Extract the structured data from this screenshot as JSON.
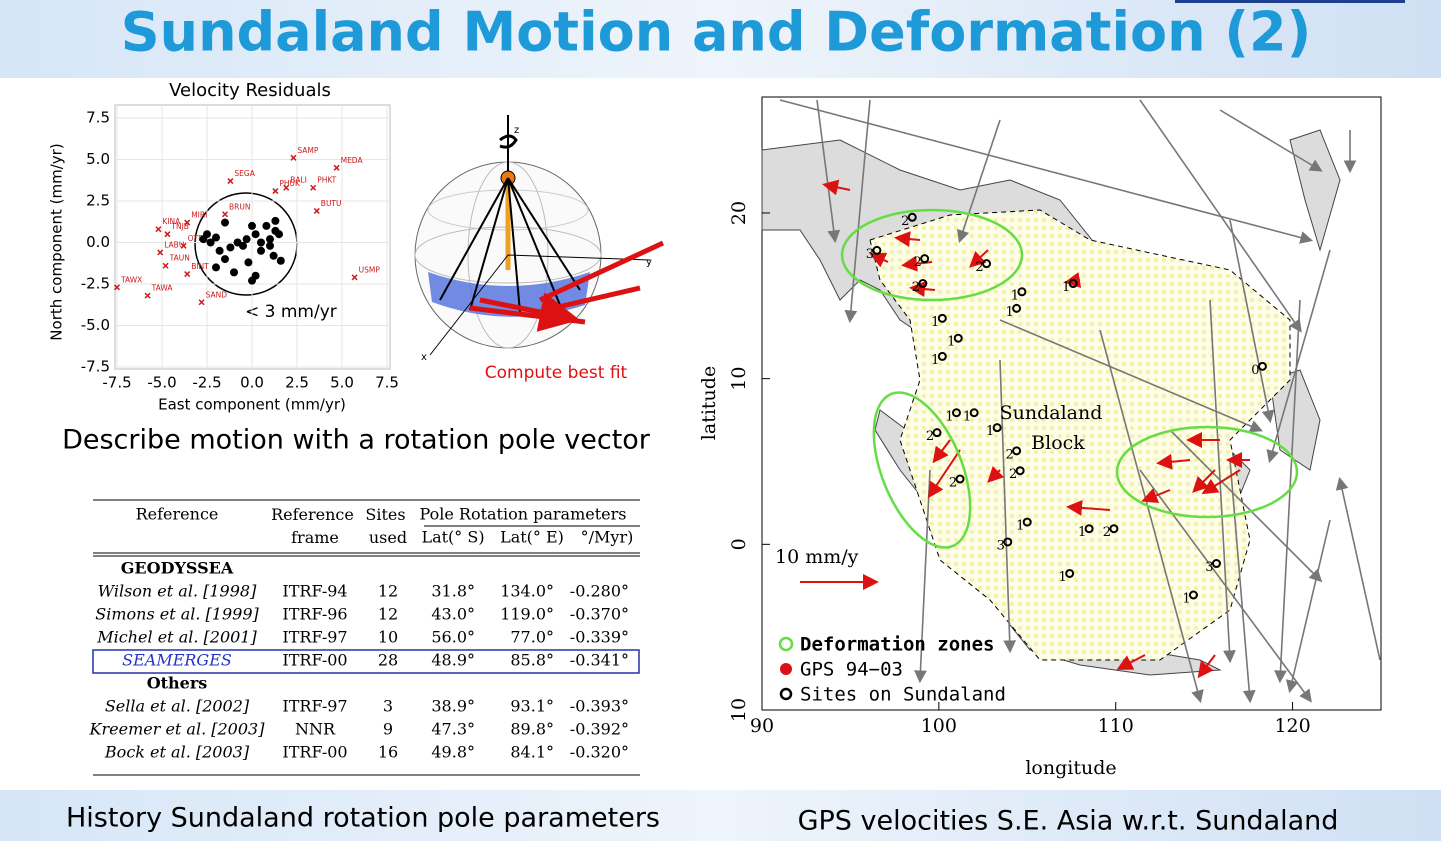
{
  "title": "Sundaland Motion and Deformation (2)",
  "scatter": {
    "type": "scatter",
    "title": "Velocity Residuals",
    "x_label": "East component (mm/yr)",
    "y_label": "North component (mm/yr)",
    "xlim": [
      -7.5,
      7.5
    ],
    "ylim": [
      -7.5,
      7.5
    ],
    "xticks": [
      -7.5,
      {
        "value": -5,
        "label": "-5.0"
      },
      -2.5,
      {
        "value": 0,
        "label": "0.0"
      },
      2.5,
      {
        "value": 5,
        "label": "5.0"
      },
      7.5
    ],
    "yticks": [
      7.5,
      {
        "value": 5,
        "label": "5.0"
      },
      2.5,
      {
        "value": 0,
        "label": "0.0"
      },
      -2.5,
      {
        "value": -5,
        "label": "-5.0"
      },
      {
        "value": -7.5,
        "label": "-7.5"
      }
    ],
    "series": [
      {
        "color": "#cc1a1a",
        "labels": [
          "SAMP",
          "MEDA",
          "SEGA",
          "BALI",
          "PHKT",
          "PHUK",
          "BRUN",
          "BUTU",
          "MIRI",
          "KINA",
          "TNJB",
          "LABU",
          "OTRI",
          "TAUN",
          "BINT",
          "USMP",
          "TAWX",
          "TAWA",
          "SAND"
        ],
        "x": [
          2.3,
          4.7,
          -1.2,
          1.9,
          3.4,
          1.3,
          -1.5,
          3.6,
          -3.6,
          -5.2,
          -4.7,
          -5.1,
          -3.8,
          -4.8,
          -3.6,
          5.7,
          -7.5,
          -5.8,
          -2.8
        ],
        "values": [
          5.1,
          4.5,
          3.7,
          3.3,
          3.3,
          3.1,
          1.7,
          1.9,
          1.2,
          0.8,
          0.5,
          -0.6,
          -0.2,
          -1.4,
          -1.9,
          -2.1,
          -2.7,
          -3.2,
          -3.6
        ]
      },
      {
        "color": "#000000",
        "x": [
          -2.5,
          -2.3,
          -2.0,
          -1.8,
          -1.5,
          -1.2,
          -0.8,
          -0.5,
          0.0,
          0.2,
          0.5,
          0.8,
          1.0,
          1.2,
          1.5,
          1.3,
          1.0,
          0.5,
          -0.2,
          0.2,
          -1.0,
          -2.0,
          -1.5,
          1.3,
          0.0,
          1.6,
          -2.7,
          -0.3
        ],
        "values": [
          0.5,
          0.0,
          0.3,
          -0.5,
          1.2,
          -0.3,
          0.0,
          -0.2,
          1.0,
          0.5,
          -0.5,
          1.0,
          0.2,
          -0.8,
          0.5,
          1.3,
          -0.2,
          0.0,
          -1.2,
          -2.0,
          -1.8,
          -1.5,
          -1.0,
          0.7,
          -2.3,
          -1.1,
          0.2,
          0.2
        ]
      }
    ],
    "annotation": "< 3 mm/yr"
  },
  "diagram": {
    "axis_z": "z",
    "axis_y": "y",
    "axis_x": "x",
    "caption": "Compute best fit"
  },
  "left_caption": "Describe motion with a rotation pole vector",
  "table": {
    "header": [
      "Reference",
      "Reference frame",
      "Sites used",
      "Pole Rotation parameters"
    ],
    "subheader": [
      "Lat(° S)",
      "Lat(° E)",
      "°/Myr)"
    ],
    "groups": [
      {
        "name": "GEODYSSEA",
        "rows": [
          [
            "Wilson et al. [1998]",
            "ITRF-94",
            "12",
            "31.8°",
            "134.0°",
            "-0.280°"
          ],
          [
            "Simons et al. [1999]",
            "ITRF-96",
            "12",
            "43.0°",
            "119.0°",
            "-0.370°"
          ],
          [
            "Michel et al. [2001]",
            "ITRF-97",
            "10",
            "56.0°",
            "77.0°",
            "-0.339°"
          ],
          [
            "SEAMERGES",
            "ITRF-00",
            "28",
            "48.9°",
            "85.8°",
            "-0.341°"
          ]
        ]
      },
      {
        "name": "Others",
        "rows": [
          [
            "Sella et al. [2002]",
            "ITRF-97",
            "3",
            "38.9°",
            "93.1°",
            "-0.393°"
          ],
          [
            "Kreemer et al. [2003]",
            "NNR",
            "9",
            "47.3°",
            "89.8°",
            "-0.392°"
          ],
          [
            "Bock et al. [2003]",
            "ITRF-00",
            "16",
            "49.8°",
            "84.1°",
            "-0.320°"
          ]
        ]
      }
    ],
    "caption": "History Sundaland rotation pole parameters"
  },
  "map": {
    "x_label": "longitude",
    "y_label": "latitude",
    "xlim": [
      90,
      125
    ],
    "ylim": [
      -10,
      27
    ],
    "xticks": [
      90,
      100,
      110,
      120
    ],
    "yticks": [
      20,
      10,
      0,
      {
        "value": -10,
        "label": "10"
      }
    ],
    "block_label": [
      "Sundaland",
      "Block"
    ],
    "scale_label": "10 mm/y",
    "legend": [
      "Deformation zones",
      "GPS 94−03",
      "Sites on Sundaland"
    ],
    "sites": [
      {
        "lon": 98.1,
        "lat": 19.5,
        "label": "2"
      },
      {
        "lon": 98.8,
        "lat": 17.0,
        "label": "2"
      },
      {
        "lon": 98.7,
        "lat": 15.5,
        "label": "2"
      },
      {
        "lon": 96.1,
        "lat": 17.5,
        "label": "3"
      },
      {
        "lon": 102.3,
        "lat": 16.7,
        "label": "2"
      },
      {
        "lon": 104.3,
        "lat": 15.0,
        "label": "1"
      },
      {
        "lon": 104.0,
        "lat": 14.0,
        "label": "1"
      },
      {
        "lon": 107.2,
        "lat": 15.5,
        "label": "1"
      },
      {
        "lon": 99.8,
        "lat": 13.4,
        "label": "1"
      },
      {
        "lon": 100.7,
        "lat": 12.2,
        "label": "1"
      },
      {
        "lon": 99.8,
        "lat": 11.1,
        "label": "1"
      },
      {
        "lon": 117.9,
        "lat": 10.5,
        "label": "0"
      },
      {
        "lon": 100.6,
        "lat": 7.7,
        "label": "1"
      },
      {
        "lon": 101.6,
        "lat": 7.7,
        "label": "1"
      },
      {
        "lon": 102.9,
        "lat": 6.8,
        "label": "1"
      },
      {
        "lon": 99.5,
        "lat": 6.5,
        "label": "2"
      },
      {
        "lon": 104.0,
        "lat": 5.4,
        "label": "2"
      },
      {
        "lon": 104.2,
        "lat": 4.2,
        "label": "2"
      },
      {
        "lon": 100.8,
        "lat": 3.7,
        "label": "2"
      },
      {
        "lon": 104.6,
        "lat": 1.1,
        "label": "1"
      },
      {
        "lon": 103.5,
        "lat": -0.1,
        "label": "3"
      },
      {
        "lon": 108.1,
        "lat": 0.7,
        "label": "1"
      },
      {
        "lon": 109.5,
        "lat": 0.7,
        "label": "2"
      },
      {
        "lon": 107.0,
        "lat": -2.0,
        "label": "1"
      },
      {
        "lon": 115.3,
        "lat": -1.4,
        "label": "3"
      },
      {
        "lon": 114.0,
        "lat": -3.3,
        "label": "1"
      }
    ],
    "caption": "GPS velocities S.E. Asia w.r.t. Sundaland"
  }
}
